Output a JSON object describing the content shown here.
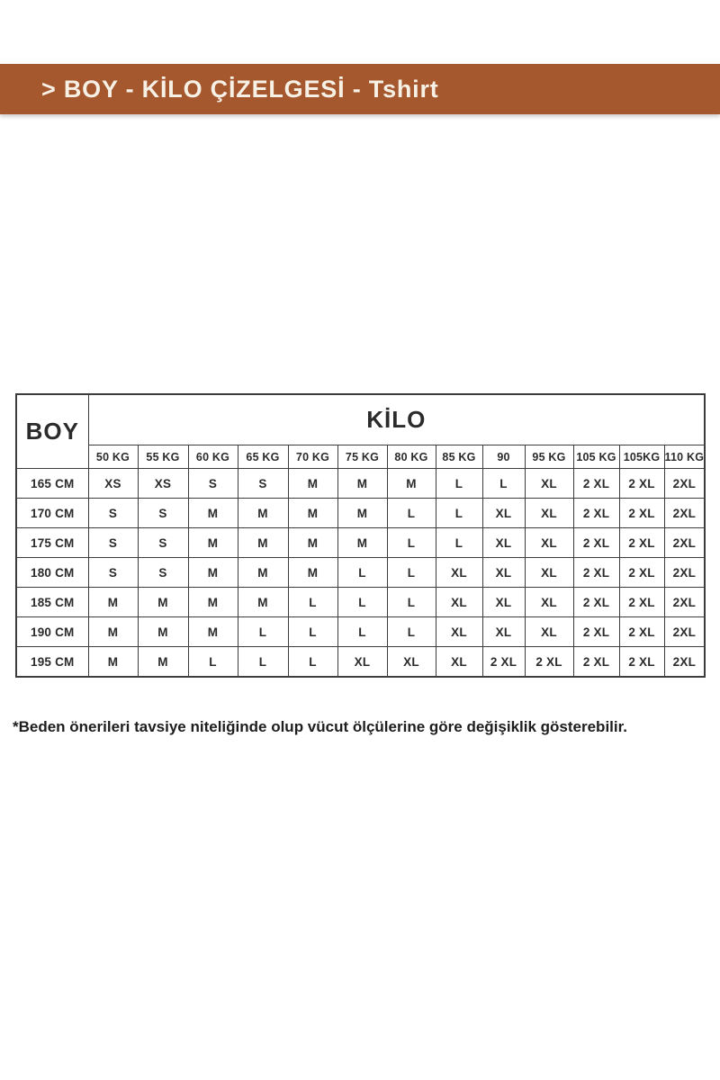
{
  "banner": {
    "text": "> BOY - KİLO ÇİZELGESİ - Tshirt",
    "bg_color": "#a5572d",
    "text_color": "#f7f0e5"
  },
  "table": {
    "row_header_label": "BOY",
    "col_group_label": "KİLO",
    "col_headers": [
      "50 KG",
      "55 KG",
      "60 KG",
      "65 KG",
      "70 KG",
      "75 KG",
      "80 KG",
      "85 KG",
      "90",
      "95 KG",
      "105 KG",
      "105KG",
      "110 KG"
    ],
    "rows": [
      {
        "height": "165 CM",
        "sizes": [
          "XS",
          "XS",
          "S",
          "S",
          "M",
          "M",
          "M",
          "L",
          "L",
          "XL",
          "2 XL",
          "2 XL",
          "2XL"
        ]
      },
      {
        "height": "170 CM",
        "sizes": [
          "S",
          "S",
          "M",
          "M",
          "M",
          "M",
          "L",
          "L",
          "XL",
          "XL",
          "2 XL",
          "2 XL",
          "2XL"
        ]
      },
      {
        "height": "175 CM",
        "sizes": [
          "S",
          "S",
          "M",
          "M",
          "M",
          "M",
          "L",
          "L",
          "XL",
          "XL",
          "2 XL",
          "2 XL",
          "2XL"
        ]
      },
      {
        "height": "180 CM",
        "sizes": [
          "S",
          "S",
          "M",
          "M",
          "M",
          "L",
          "L",
          "XL",
          "XL",
          "XL",
          "2 XL",
          "2 XL",
          "2XL"
        ]
      },
      {
        "height": "185 CM",
        "sizes": [
          "M",
          "M",
          "M",
          "M",
          "L",
          "L",
          "L",
          "XL",
          "XL",
          "XL",
          "2 XL",
          "2 XL",
          "2XL"
        ]
      },
      {
        "height": "190 CM",
        "sizes": [
          "M",
          "M",
          "M",
          "L",
          "L",
          "L",
          "L",
          "XL",
          "XL",
          "XL",
          "2 XL",
          "2 XL",
          "2XL"
        ]
      },
      {
        "height": "195 CM",
        "sizes": [
          "M",
          "M",
          "L",
          "L",
          "L",
          "XL",
          "XL",
          "XL",
          "2 XL",
          "2 XL",
          "2 XL",
          "2 XL",
          "2XL"
        ]
      }
    ]
  },
  "footnote": "*Beden önerileri tavsiye niteliğinde olup vücut ölçülerine göre değişiklik gösterebilir."
}
